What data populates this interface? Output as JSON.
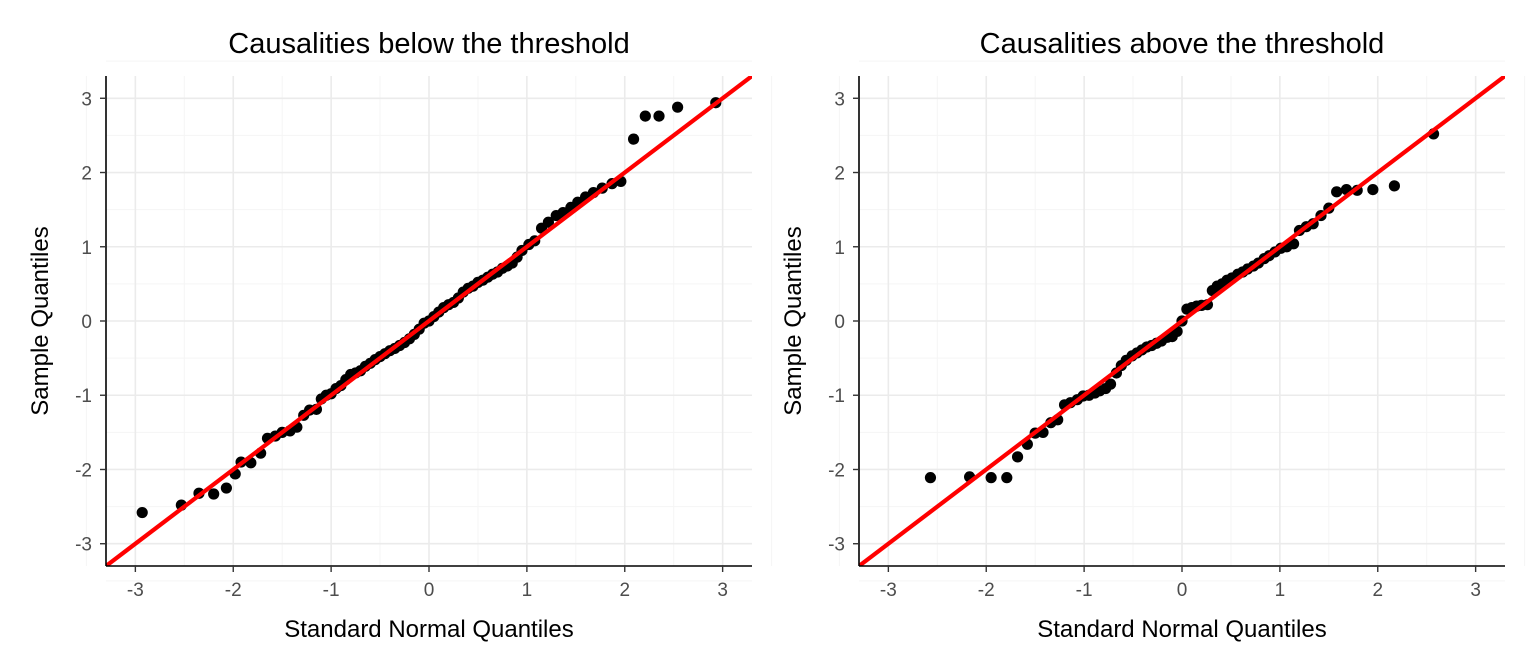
{
  "chart_data": [
    {
      "type": "scatter",
      "title": "Causalities below the threshold",
      "xlabel": "Standard Normal Quantiles",
      "ylabel": "Sample Quantiles",
      "xlim": [
        -3.3,
        3.3
      ],
      "ylim": [
        -3.3,
        3.3
      ],
      "xticks": [
        -3,
        -2,
        -1,
        0,
        1,
        2,
        3
      ],
      "yticks": [
        -3,
        -2,
        -1,
        0,
        1,
        2,
        3
      ],
      "xtick_labels": [
        "-3",
        "-2",
        "-1",
        "0",
        "1",
        "2",
        "3"
      ],
      "ytick_labels": [
        "-3",
        "-2",
        "-1",
        "0",
        "1",
        "2",
        "3"
      ],
      "grid": true,
      "reference_line": {
        "intercept": 0,
        "slope": 1,
        "color": "#ff0000"
      },
      "point_color": "#000000",
      "points": [
        [
          -2.93,
          -2.58
        ],
        [
          -2.53,
          -2.48
        ],
        [
          -2.35,
          -2.32
        ],
        [
          -2.2,
          -2.33
        ],
        [
          -2.07,
          -2.25
        ],
        [
          -1.98,
          -2.06
        ],
        [
          -1.92,
          -1.9
        ],
        [
          -1.82,
          -1.91
        ],
        [
          -1.72,
          -1.78
        ],
        [
          -1.65,
          -1.58
        ],
        [
          -1.57,
          -1.55
        ],
        [
          -1.5,
          -1.5
        ],
        [
          -1.42,
          -1.48
        ],
        [
          -1.35,
          -1.43
        ],
        [
          -1.28,
          -1.27
        ],
        [
          -1.22,
          -1.2
        ],
        [
          -1.15,
          -1.19
        ],
        [
          -1.1,
          -1.05
        ],
        [
          -1.05,
          -1.0
        ],
        [
          -1.0,
          -0.98
        ],
        [
          -0.95,
          -0.91
        ],
        [
          -0.9,
          -0.87
        ],
        [
          -0.85,
          -0.79
        ],
        [
          -0.8,
          -0.72
        ],
        [
          -0.75,
          -0.7
        ],
        [
          -0.7,
          -0.67
        ],
        [
          -0.65,
          -0.61
        ],
        [
          -0.6,
          -0.57
        ],
        [
          -0.55,
          -0.52
        ],
        [
          -0.5,
          -0.48
        ],
        [
          -0.45,
          -0.44
        ],
        [
          -0.4,
          -0.4
        ],
        [
          -0.35,
          -0.37
        ],
        [
          -0.3,
          -0.33
        ],
        [
          -0.25,
          -0.29
        ],
        [
          -0.2,
          -0.24
        ],
        [
          -0.15,
          -0.18
        ],
        [
          -0.1,
          -0.11
        ],
        [
          -0.05,
          -0.03
        ],
        [
          0.0,
          0.0
        ],
        [
          0.05,
          0.06
        ],
        [
          0.1,
          0.12
        ],
        [
          0.15,
          0.18
        ],
        [
          0.2,
          0.22
        ],
        [
          0.25,
          0.25
        ],
        [
          0.3,
          0.31
        ],
        [
          0.35,
          0.39
        ],
        [
          0.4,
          0.44
        ],
        [
          0.45,
          0.47
        ],
        [
          0.5,
          0.52
        ],
        [
          0.55,
          0.55
        ],
        [
          0.6,
          0.59
        ],
        [
          0.65,
          0.63
        ],
        [
          0.7,
          0.66
        ],
        [
          0.75,
          0.71
        ],
        [
          0.8,
          0.74
        ],
        [
          0.85,
          0.78
        ],
        [
          0.9,
          0.86
        ],
        [
          0.95,
          0.95
        ],
        [
          1.02,
          1.03
        ],
        [
          1.08,
          1.08
        ],
        [
          1.15,
          1.25
        ],
        [
          1.22,
          1.33
        ],
        [
          1.3,
          1.42
        ],
        [
          1.37,
          1.46
        ],
        [
          1.45,
          1.53
        ],
        [
          1.52,
          1.6
        ],
        [
          1.6,
          1.67
        ],
        [
          1.68,
          1.73
        ],
        [
          1.77,
          1.79
        ],
        [
          1.87,
          1.85
        ],
        [
          1.96,
          1.88
        ],
        [
          2.09,
          2.45
        ],
        [
          2.21,
          2.76
        ],
        [
          2.35,
          2.76
        ],
        [
          2.54,
          2.88
        ],
        [
          2.93,
          2.94
        ]
      ]
    },
    {
      "type": "scatter",
      "title": "Causalities above the threshold",
      "xlabel": "Standard Normal Quantiles",
      "ylabel": "Sample Quantiles",
      "xlim": [
        -3.3,
        3.3
      ],
      "ylim": [
        -3.3,
        3.3
      ],
      "xticks": [
        -3,
        -2,
        -1,
        0,
        1,
        2,
        3
      ],
      "yticks": [
        -3,
        -2,
        -1,
        0,
        1,
        2,
        3
      ],
      "xtick_labels": [
        "-3",
        "-2",
        "-1",
        "0",
        "1",
        "2",
        "3"
      ],
      "ytick_labels": [
        "-3",
        "-2",
        "-1",
        "0",
        "1",
        "2",
        "3"
      ],
      "grid": true,
      "reference_line": {
        "intercept": 0,
        "slope": 1,
        "color": "#ff0000"
      },
      "point_color": "#000000",
      "points": [
        [
          -2.57,
          -2.11
        ],
        [
          -2.17,
          -2.1
        ],
        [
          -1.95,
          -2.11
        ],
        [
          -1.79,
          -2.11
        ],
        [
          -1.68,
          -1.83
        ],
        [
          -1.58,
          -1.66
        ],
        [
          -1.5,
          -1.51
        ],
        [
          -1.42,
          -1.5
        ],
        [
          -1.34,
          -1.37
        ],
        [
          -1.27,
          -1.33
        ],
        [
          -1.2,
          -1.13
        ],
        [
          -1.14,
          -1.1
        ],
        [
          -1.07,
          -1.06
        ],
        [
          -1.01,
          -1.01
        ],
        [
          -0.95,
          -1.0
        ],
        [
          -0.89,
          -0.97
        ],
        [
          -0.84,
          -0.94
        ],
        [
          -0.78,
          -0.91
        ],
        [
          -0.73,
          -0.85
        ],
        [
          -0.67,
          -0.7
        ],
        [
          -0.62,
          -0.6
        ],
        [
          -0.57,
          -0.53
        ],
        [
          -0.51,
          -0.47
        ],
        [
          -0.46,
          -0.43
        ],
        [
          -0.41,
          -0.39
        ],
        [
          -0.36,
          -0.35
        ],
        [
          -0.31,
          -0.33
        ],
        [
          -0.26,
          -0.3
        ],
        [
          -0.21,
          -0.27
        ],
        [
          -0.15,
          -0.22
        ],
        [
          -0.1,
          -0.21
        ],
        [
          -0.05,
          -0.14
        ],
        [
          0.0,
          0.0
        ],
        [
          0.05,
          0.16
        ],
        [
          0.1,
          0.18
        ],
        [
          0.15,
          0.2
        ],
        [
          0.2,
          0.21
        ],
        [
          0.26,
          0.22
        ],
        [
          0.31,
          0.41
        ],
        [
          0.36,
          0.47
        ],
        [
          0.41,
          0.5
        ],
        [
          0.46,
          0.55
        ],
        [
          0.51,
          0.58
        ],
        [
          0.57,
          0.63
        ],
        [
          0.62,
          0.66
        ],
        [
          0.67,
          0.7
        ],
        [
          0.73,
          0.74
        ],
        [
          0.78,
          0.78
        ],
        [
          0.84,
          0.84
        ],
        [
          0.89,
          0.88
        ],
        [
          0.95,
          0.93
        ],
        [
          1.01,
          0.98
        ],
        [
          1.07,
          1.0
        ],
        [
          1.14,
          1.04
        ],
        [
          1.2,
          1.22
        ],
        [
          1.27,
          1.27
        ],
        [
          1.34,
          1.31
        ],
        [
          1.42,
          1.42
        ],
        [
          1.5,
          1.52
        ],
        [
          1.58,
          1.74
        ],
        [
          1.68,
          1.77
        ],
        [
          1.79,
          1.76
        ],
        [
          1.95,
          1.77
        ],
        [
          2.17,
          1.82
        ],
        [
          2.57,
          2.52
        ]
      ]
    }
  ]
}
